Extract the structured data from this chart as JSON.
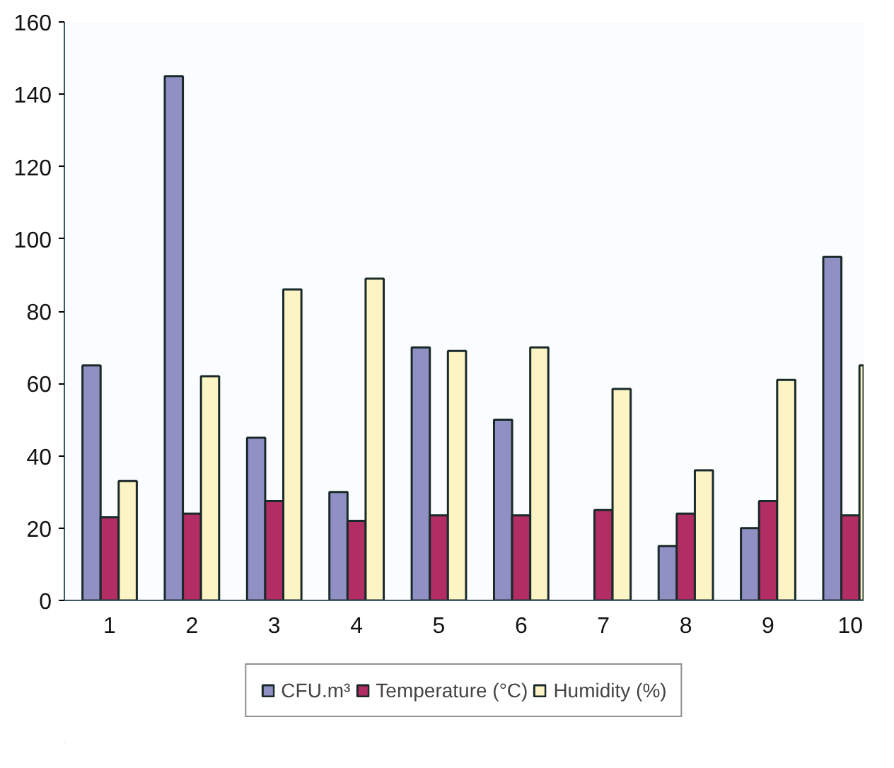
{
  "chart_data": {
    "type": "bar",
    "categories": [
      "1",
      "2",
      "3",
      "4",
      "5",
      "6",
      "7",
      "8",
      "9",
      "10"
    ],
    "series": [
      {
        "name": "CFU.m³",
        "color": "#9090c4",
        "values": [
          65,
          145,
          45,
          30,
          70,
          50,
          null,
          15,
          20,
          95
        ]
      },
      {
        "name": "Temperature (°C)",
        "color": "#b22d64",
        "values": [
          23,
          24,
          27.5,
          22,
          23.5,
          23.5,
          25,
          24,
          27.5,
          23.5
        ]
      },
      {
        "name": "Humidity (%)",
        "color": "#fcf4c4",
        "values": [
          33,
          62,
          86,
          89,
          69,
          70,
          58.5,
          36,
          61,
          65
        ]
      }
    ],
    "ylim": [
      0,
      160
    ],
    "yticks": [
      0,
      20,
      40,
      60,
      80,
      100,
      120,
      140,
      160
    ],
    "grid": false,
    "legend": "bottom"
  }
}
